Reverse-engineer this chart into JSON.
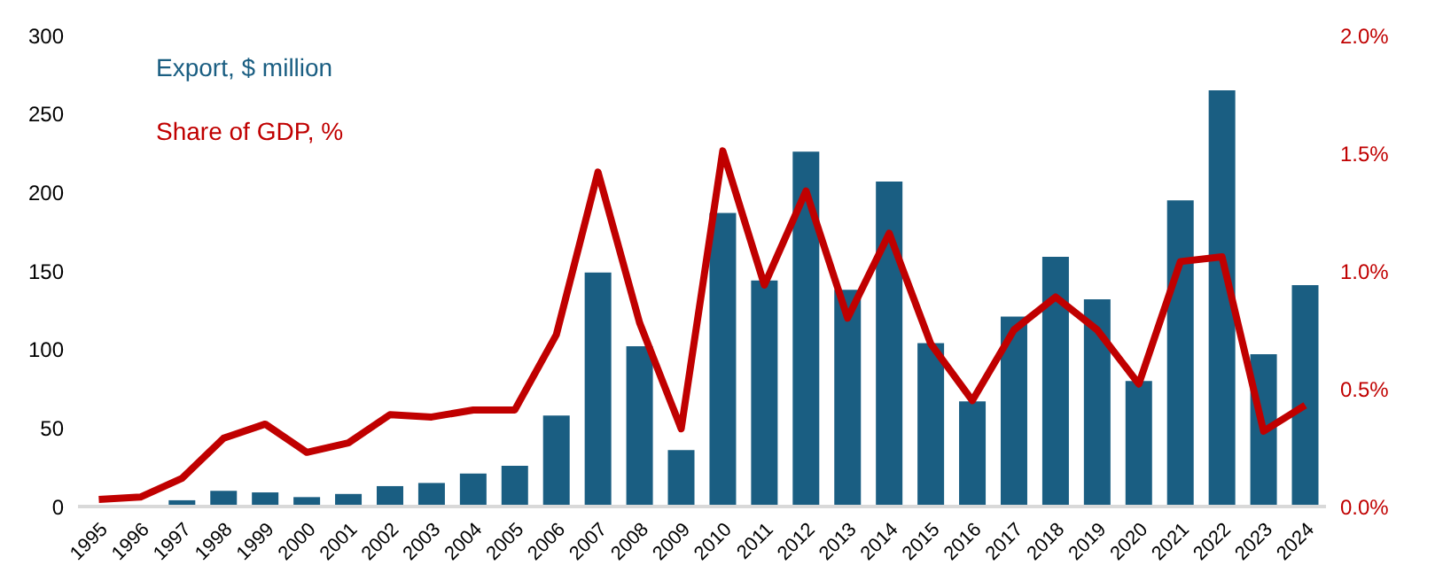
{
  "chart_data": {
    "type": "bar",
    "categories": [
      "1995",
      "1996",
      "1997",
      "1998",
      "1999",
      "2000",
      "2001",
      "2002",
      "2003",
      "2004",
      "2005",
      "2006",
      "2007",
      "2008",
      "2009",
      "2010",
      "2011",
      "2012",
      "2013",
      "2014",
      "2015",
      "2016",
      "2017",
      "2018",
      "2019",
      "2020",
      "2021",
      "2022",
      "2023",
      "2024"
    ],
    "series": [
      {
        "name": "Export, $ million",
        "color": "#1a5e82",
        "values": [
          null,
          null,
          4,
          10,
          9,
          6,
          8,
          13,
          15,
          21,
          26,
          58,
          149,
          102,
          36,
          187,
          144,
          226,
          138,
          207,
          104,
          67,
          121,
          159,
          132,
          80,
          195,
          265,
          97,
          141
        ]
      },
      {
        "name": "Share of GDP, %",
        "type": "line",
        "axis": "y2",
        "color": "#c00000",
        "values": [
          0.03,
          0.04,
          0.12,
          0.29,
          0.35,
          0.23,
          0.27,
          0.39,
          0.38,
          0.41,
          0.41,
          0.73,
          1.42,
          0.78,
          0.33,
          1.51,
          0.94,
          1.34,
          0.8,
          1.16,
          0.69,
          0.45,
          0.75,
          0.89,
          0.75,
          0.52,
          1.04,
          1.06,
          0.32,
          0.43
        ]
      }
    ],
    "ylim": [
      0,
      300
    ],
    "yticks": [
      0,
      50,
      100,
      150,
      200,
      250,
      300
    ],
    "y2lim": [
      0,
      2
    ],
    "y2ticks": [
      {
        "value": 0,
        "label": "0.0%"
      },
      {
        "value": 0.5,
        "label": "0.5%"
      },
      {
        "value": 1,
        "label": "1.0%"
      },
      {
        "value": 1.5,
        "label": "1.5%"
      },
      {
        "value": 2,
        "label": "2.0%"
      }
    ],
    "grid": false,
    "legend": "top left",
    "marker": "none",
    "line_style": "solid"
  }
}
